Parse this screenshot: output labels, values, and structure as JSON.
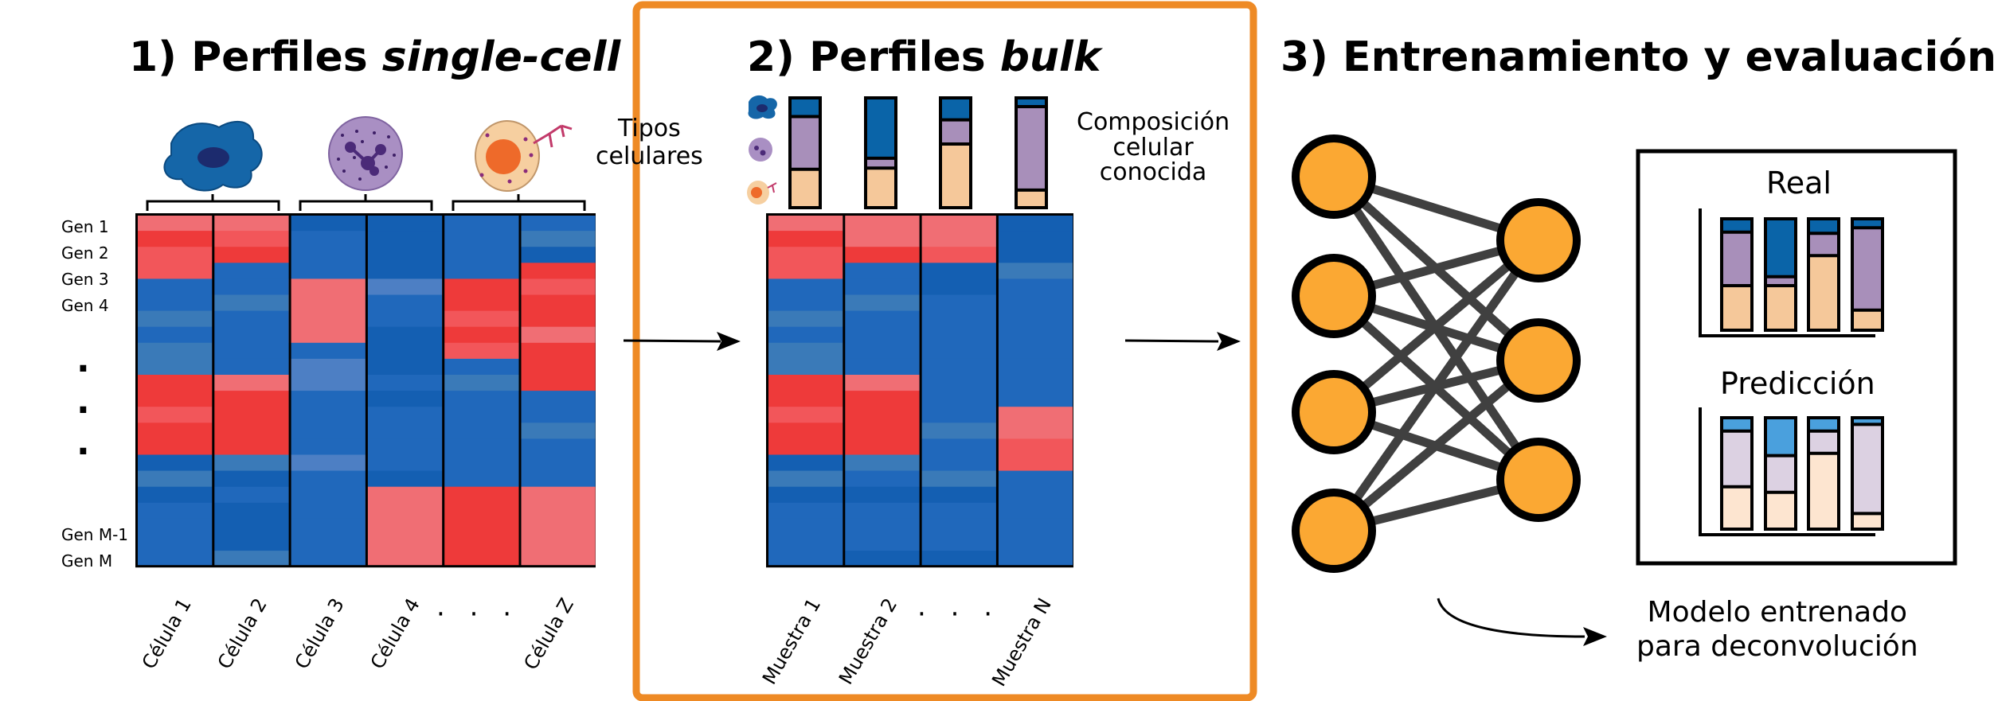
{
  "panels": {
    "p1": {
      "number": "1)",
      "title_plain": "Perfiles ",
      "title_italic": "single-cell"
    },
    "p2": {
      "number": "2)",
      "title_plain": "Perfiles ",
      "title_italic": "bulk"
    },
    "p3": {
      "title": "3) Entrenamiento y evaluación"
    }
  },
  "genes": [
    "Gen 1",
    "Gen 2",
    "Gen 3",
    "Gen 4",
    "Gen M-1",
    "Gen M"
  ],
  "vertical_dots": [
    "·",
    "·",
    "·"
  ],
  "cell_columns": [
    "Célula 1",
    "Célula 2",
    "Célula 3",
    "Célula 4",
    "Célula Z"
  ],
  "sample_columns": [
    "Muestra 1",
    "Muestra 2",
    "Muestra N"
  ],
  "horizontal_dots": "· · ·",
  "labels": {
    "cell_types": "Tipos\ncelulares",
    "known_composition": "Composición\ncelular\nconocida",
    "real": "Real",
    "prediction": "Predicción",
    "trained_model": "Modelo entrenado\npara deconvolución"
  },
  "colors": {
    "highlight_border": "#ee8a25",
    "neuron": "#fba833",
    "edge": "#404040",
    "dark_blue": "#0a64a8",
    "purple": "#a88fba",
    "peach": "#f5c89a",
    "light_blue": "#4aa0dd",
    "light_purple": "#dcd1e2",
    "light_peach": "#fde5d0"
  }
}
